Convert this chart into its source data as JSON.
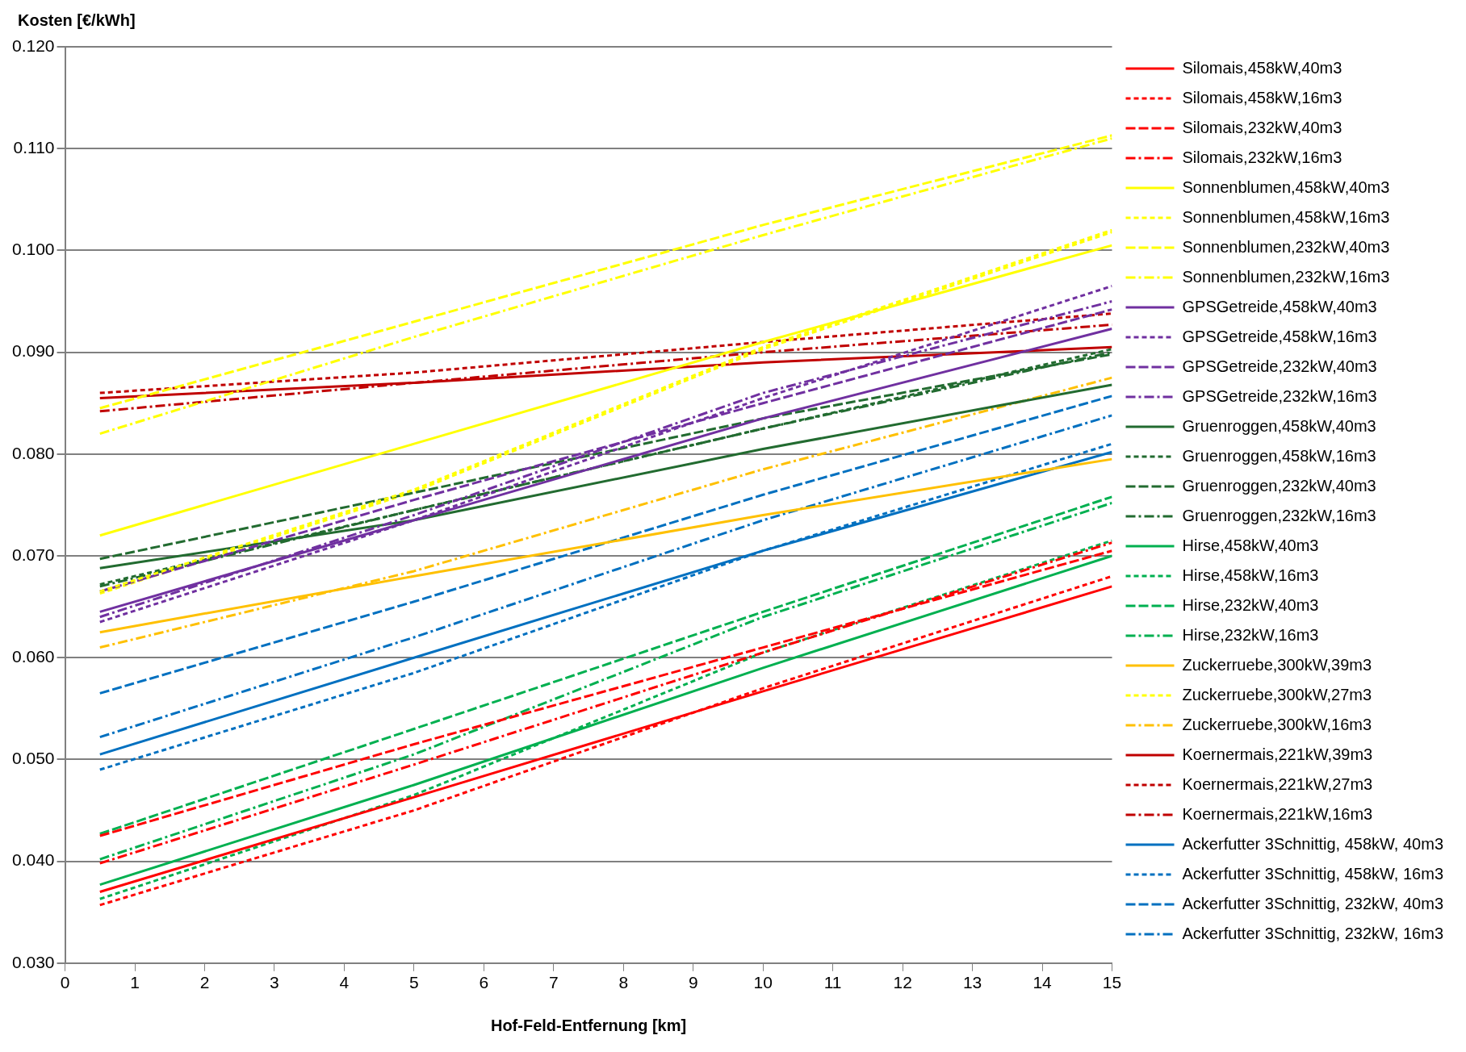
{
  "chart_data": {
    "type": "line",
    "ylabel": "Kosten [€/kWh]",
    "xlabel": "Hof-Feld-Entfernung [km]",
    "x": [
      0.5,
      5,
      10,
      15
    ],
    "xlim": [
      0,
      15
    ],
    "xticks": [
      0,
      1,
      2,
      3,
      4,
      5,
      6,
      7,
      8,
      9,
      10,
      11,
      12,
      13,
      14,
      15
    ],
    "ylim": [
      0.03,
      0.12
    ],
    "yticks": [
      {
        "value": 0.03,
        "label": "0.030"
      },
      {
        "value": 0.04,
        "label": "0.040"
      },
      {
        "value": 0.05,
        "label": "0.050"
      },
      {
        "value": 0.06,
        "label": "0.060"
      },
      {
        "value": 0.07,
        "label": "0.070"
      },
      {
        "value": 0.08,
        "label": "0.080"
      },
      {
        "value": 0.09,
        "label": "0.090"
      },
      {
        "value": 0.1,
        "label": "0.100"
      },
      {
        "value": 0.11,
        "label": "0.110"
      },
      {
        "value": 0.12,
        "label": "0.120"
      }
    ],
    "grid": "y",
    "legend": "right",
    "marker": "none",
    "series": [
      {
        "name": "Silomais,458kW,40m3",
        "color": "#ff0000",
        "line_style": "solid",
        "values": [
          0.037,
          0.0463,
          0.0567,
          0.067
        ]
      },
      {
        "name": "Silomais,458kW,16m3",
        "color": "#ff0000",
        "line_style": "dashed",
        "values": [
          0.0357,
          0.045,
          0.057,
          0.068
        ]
      },
      {
        "name": "Silomais,232kW,40m3",
        "color": "#ff0000",
        "line_style": "longdash",
        "values": [
          0.0425,
          0.0515,
          0.061,
          0.0705
        ]
      },
      {
        "name": "Silomais,232kW,16m3",
        "color": "#ff0000",
        "line_style": "dashdot",
        "values": [
          0.0398,
          0.0495,
          0.0605,
          0.0713
        ]
      },
      {
        "name": "Sonnenblumen,458kW,40m3",
        "color": "#ffff00",
        "line_style": "solid",
        "values": [
          0.072,
          0.081,
          0.091,
          0.1005
        ]
      },
      {
        "name": "Sonnenblumen,458kW,16m3",
        "color": "#ffff00",
        "line_style": "dashed",
        "values": [
          0.0665,
          0.0765,
          0.0905,
          0.102
        ]
      },
      {
        "name": "Sonnenblumen,232kW,40m3",
        "color": "#ffff00",
        "line_style": "longdash",
        "values": [
          0.0845,
          0.093,
          0.1025,
          0.1113
        ]
      },
      {
        "name": "Sonnenblumen,232kW,16m3",
        "color": "#ffff00",
        "line_style": "dashdot",
        "values": [
          0.082,
          0.0915,
          0.1015,
          0.111
        ]
      },
      {
        "name": "GPSGetreide,458kW,40m3",
        "color": "#7030a0",
        "line_style": "solid",
        "values": [
          0.0645,
          0.0735,
          0.0835,
          0.0923
        ]
      },
      {
        "name": "GPSGetreide,458kW,16m3",
        "color": "#7030a0",
        "line_style": "dashed",
        "values": [
          0.0635,
          0.0735,
          0.0855,
          0.0965
        ]
      },
      {
        "name": "GPSGetreide,232kW,40m3",
        "color": "#7030a0",
        "line_style": "longdash",
        "values": [
          0.0665,
          0.0755,
          0.085,
          0.0942
        ]
      },
      {
        "name": "GPSGetreide,232kW,16m3",
        "color": "#7030a0",
        "line_style": "dashdot",
        "values": [
          0.064,
          0.074,
          0.086,
          0.095
        ]
      },
      {
        "name": "Gruenroggen,458kW,40m3",
        "color": "#226b30",
        "line_style": "solid",
        "values": [
          0.0688,
          0.0735,
          0.0805,
          0.0868
        ]
      },
      {
        "name": "Gruenroggen,458kW,16m3",
        "color": "#226b30",
        "line_style": "dashed",
        "values": [
          0.0672,
          0.0745,
          0.0825,
          0.0903
        ]
      },
      {
        "name": "Gruenroggen,232kW,40m3",
        "color": "#226b30",
        "line_style": "longdash",
        "values": [
          0.0697,
          0.0762,
          0.0835,
          0.0898
        ]
      },
      {
        "name": "Gruenroggen,232kW,16m3",
        "color": "#226b30",
        "line_style": "dashdot",
        "values": [
          0.067,
          0.0745,
          0.0825,
          0.09
        ]
      },
      {
        "name": "Hirse,458kW,40m3",
        "color": "#00b050",
        "line_style": "solid",
        "values": [
          0.0377,
          0.0475,
          0.059,
          0.07
        ]
      },
      {
        "name": "Hirse,458kW,16m3",
        "color": "#00b050",
        "line_style": "dashed",
        "values": [
          0.0363,
          0.0465,
          0.0605,
          0.0715
        ]
      },
      {
        "name": "Hirse,232kW,40m3",
        "color": "#00b050",
        "line_style": "longdash",
        "values": [
          0.0427,
          0.053,
          0.0645,
          0.0758
        ]
      },
      {
        "name": "Hirse,232kW,16m3",
        "color": "#00b050",
        "line_style": "dashdot",
        "values": [
          0.0402,
          0.0505,
          0.064,
          0.0752
        ]
      },
      {
        "name": "Zuckerruebe,300kW,39m3",
        "color": "#ffc000",
        "line_style": "solid",
        "values": [
          0.0625,
          0.068,
          0.074,
          0.0795
        ]
      },
      {
        "name": "Zuckerruebe,300kW,27m3",
        "color": "#ffff00",
        "line_style": "dashed",
        "values": [
          0.0663,
          0.0763,
          0.0903,
          0.1018
        ]
      },
      {
        "name": "Zuckerruebe,300kW,16m3",
        "color": "#ffc000",
        "line_style": "dashdot",
        "values": [
          0.061,
          0.0685,
          0.0785,
          0.0875
        ]
      },
      {
        "name": "Koernermais,221kW,39m3",
        "color": "#c00000",
        "line_style": "solid",
        "values": [
          0.0855,
          0.087,
          0.089,
          0.0905
        ]
      },
      {
        "name": "Koernermais,221kW,27m3",
        "color": "#c00000",
        "line_style": "dashed",
        "values": [
          0.086,
          0.088,
          0.091,
          0.0938
        ]
      },
      {
        "name": "Koernermais,221kW,16m3",
        "color": "#c00000",
        "line_style": "dashdot",
        "values": [
          0.0842,
          0.087,
          0.09,
          0.0927
        ]
      },
      {
        "name": "Ackerfutter 3Schnittig, 458kW, 40m3",
        "color": "#0070c0",
        "line_style": "solid",
        "values": [
          0.0505,
          0.06,
          0.0705,
          0.0802
        ]
      },
      {
        "name": "Ackerfutter 3Schnittig, 458kW, 16m3",
        "color": "#0070c0",
        "line_style": "dashed",
        "values": [
          0.049,
          0.0585,
          0.0705,
          0.081
        ]
      },
      {
        "name": "Ackerfutter 3Schnittig, 232kW, 40m3",
        "color": "#0070c0",
        "line_style": "longdash",
        "values": [
          0.0565,
          0.0655,
          0.076,
          0.0857
        ]
      },
      {
        "name": "Ackerfutter 3Schnittig, 232kW, 16m3",
        "color": "#0070c0",
        "line_style": "dashdot",
        "values": [
          0.0522,
          0.062,
          0.0735,
          0.0838
        ]
      }
    ]
  }
}
